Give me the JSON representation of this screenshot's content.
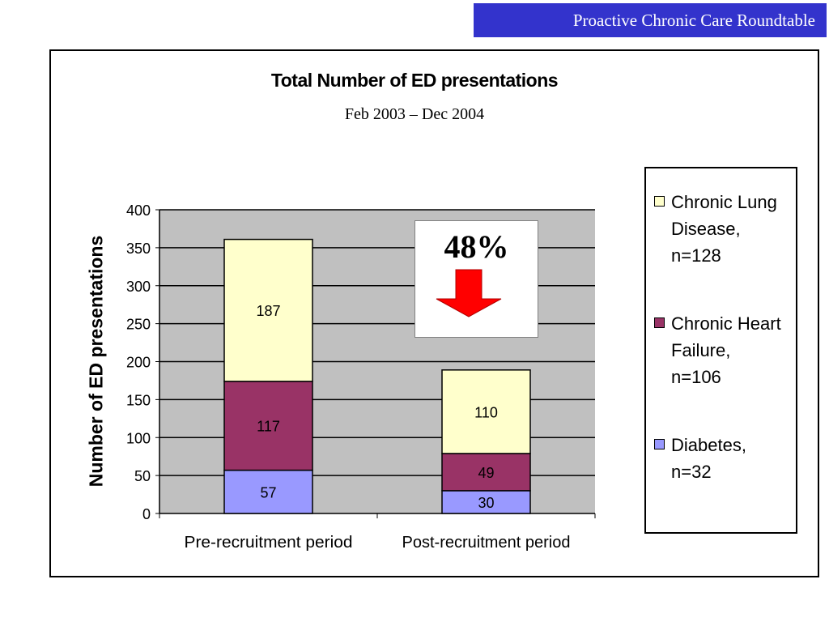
{
  "header": {
    "title": "Proactive Chronic Care Roundtable"
  },
  "callout": {
    "text": "48%",
    "direction": "down",
    "color": "#ff0000"
  },
  "chart_data": {
    "type": "bar",
    "stacked": true,
    "title": "Total Number of ED presentations",
    "subtitle": "Feb 2003 – Dec 2004",
    "xlabel": "",
    "ylabel": "Number of ED presentations",
    "categories": [
      "Pre-recruitment period",
      "Post-recruitment period"
    ],
    "ylim": [
      0,
      400
    ],
    "yticks": [
      0,
      50,
      100,
      150,
      200,
      250,
      300,
      350,
      400
    ],
    "grid": true,
    "plot_background": "#c0c0c0",
    "legend_placement": "right",
    "series": [
      {
        "name": "Diabetes, n=32",
        "values": [
          57,
          30
        ],
        "color": "#9999ff"
      },
      {
        "name": "Chronic Heart Failure, n=106",
        "values": [
          117,
          49
        ],
        "color": "#993366"
      },
      {
        "name": "Chronic Lung Disease, n=128",
        "values": [
          187,
          110
        ],
        "color": "#ffffcc"
      }
    ],
    "legend": [
      {
        "lines": [
          "Chronic Lung",
          "Disease,",
          "n=128"
        ],
        "color": "#ffffcc"
      },
      {
        "lines": [
          "Chronic Heart",
          "Failure,",
          "n=106"
        ],
        "color": "#993366"
      },
      {
        "lines": [
          "Diabetes,",
          "n=32"
        ],
        "color": "#9999ff"
      }
    ]
  }
}
